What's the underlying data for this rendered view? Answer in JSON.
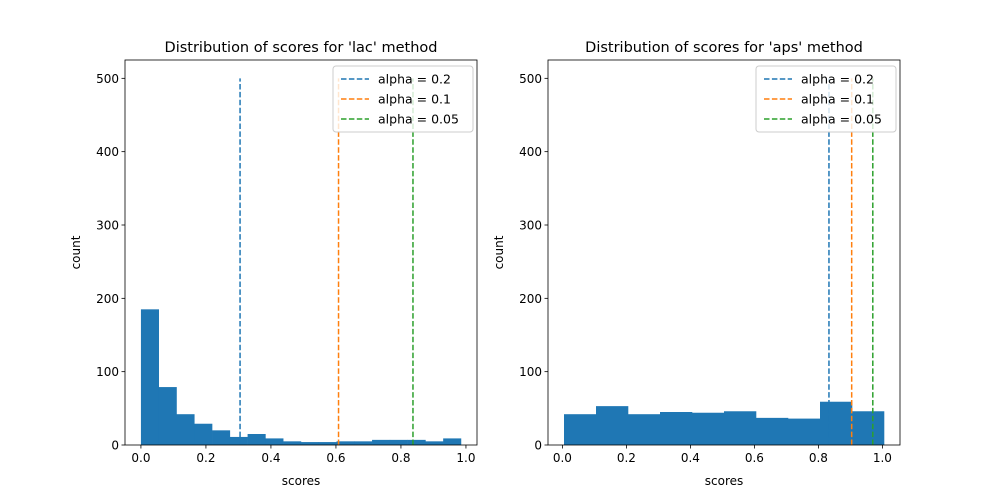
{
  "chart_data": [
    {
      "type": "bar",
      "title": "Distribution of scores for 'lac' method",
      "xlabel": "scores",
      "ylabel": "count",
      "xlim": [
        -0.049,
        1.034
      ],
      "ylim": [
        0,
        525
      ],
      "xticks": [
        0.0,
        0.2,
        0.4,
        0.6,
        0.8,
        1.0
      ],
      "xtick_labels": [
        "0.0",
        "0.2",
        "0.4",
        "0.6",
        "0.8",
        "1.0"
      ],
      "yticks": [
        0,
        100,
        200,
        300,
        400,
        500
      ],
      "ytick_labels": [
        "0",
        "100",
        "200",
        "300",
        "400",
        "500"
      ],
      "bin_start": 0.0,
      "bin_width": 0.0547,
      "values": [
        185,
        79,
        42,
        29,
        20,
        11,
        15,
        9,
        5,
        4,
        4,
        5,
        5,
        7,
        7,
        7,
        5,
        9
      ],
      "bar_color": "#1f77b4",
      "vlines": [
        {
          "name": "alpha = 0.2",
          "x": 0.305,
          "ymax": 500,
          "color": "#1f77b4"
        },
        {
          "name": "alpha = 0.1",
          "x": 0.608,
          "ymax": 500,
          "color": "#ff7f0e"
        },
        {
          "name": "alpha = 0.05",
          "x": 0.837,
          "ymax": 500,
          "color": "#2ca02c"
        }
      ],
      "legend": "top-right",
      "grid": false
    },
    {
      "type": "bar",
      "title": "Distribution of scores for 'aps' method",
      "xlabel": "scores",
      "ylabel": "count",
      "xlim": [
        -0.045,
        1.055
      ],
      "ylim": [
        0,
        525
      ],
      "xticks": [
        0.0,
        0.2,
        0.4,
        0.6,
        0.8,
        1.0
      ],
      "xtick_labels": [
        "0.0",
        "0.2",
        "0.4",
        "0.6",
        "0.8",
        "1.0"
      ],
      "yticks": [
        0,
        100,
        200,
        300,
        400,
        500
      ],
      "ytick_labels": [
        "0",
        "100",
        "200",
        "300",
        "400",
        "500"
      ],
      "bin_start": 0.005,
      "bin_width": 0.1,
      "values": [
        42,
        53,
        42,
        45,
        44,
        46,
        37,
        36,
        59,
        46
      ],
      "bar_color": "#1f77b4",
      "vlines": [
        {
          "name": "alpha = 0.2",
          "x": 0.833,
          "ymax": 500,
          "color": "#1f77b4"
        },
        {
          "name": "alpha = 0.1",
          "x": 0.904,
          "ymax": 500,
          "color": "#ff7f0e"
        },
        {
          "name": "alpha = 0.05",
          "x": 0.97,
          "ymax": 500,
          "color": "#2ca02c"
        }
      ],
      "legend": "top-right",
      "grid": false
    }
  ]
}
